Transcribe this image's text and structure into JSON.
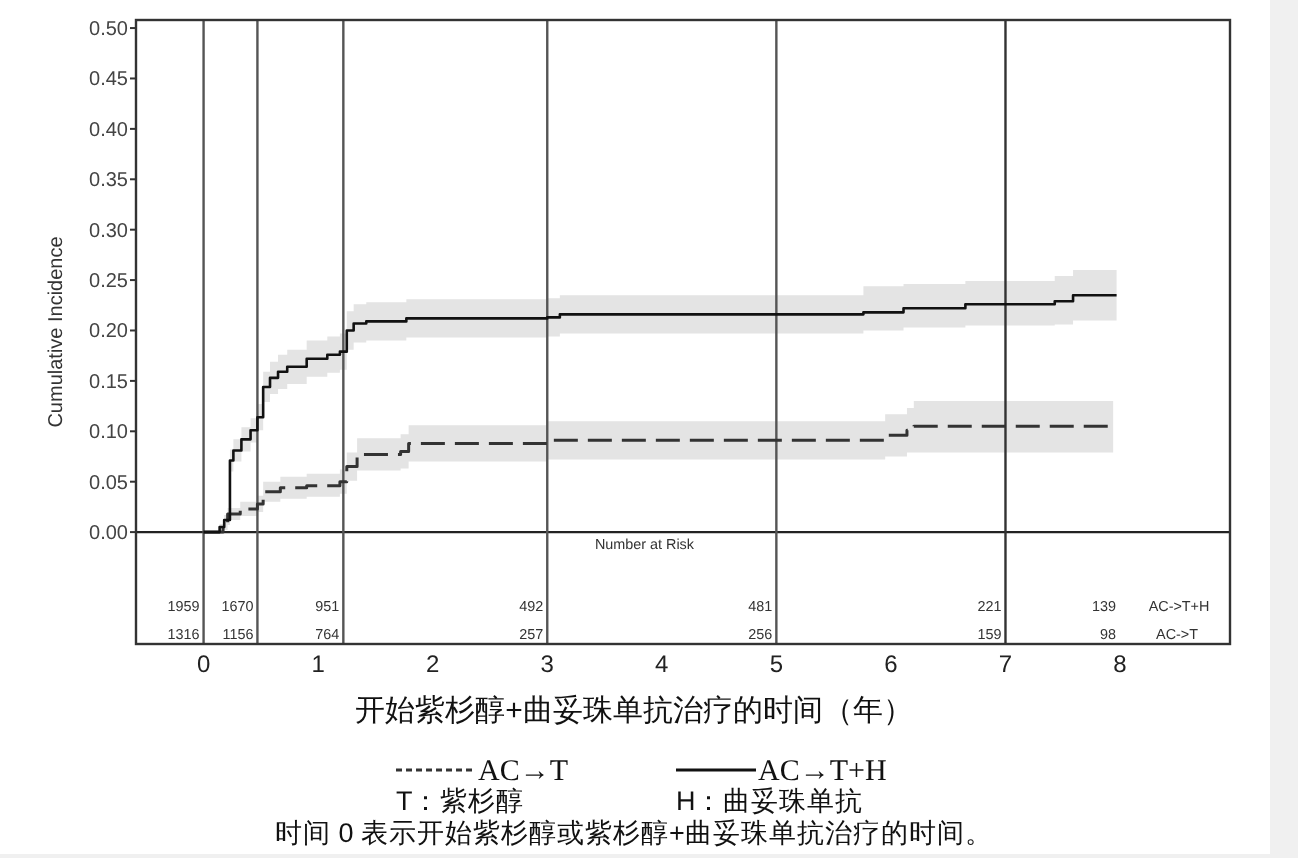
{
  "chart_data": {
    "type": "step",
    "xlabel": "开始紫杉醇+曲妥珠单抗治疗的时间（年）",
    "ylabel": "Cumulative Incidence",
    "xlim": [
      -0.59,
      8.96
    ],
    "ylim": [
      -0.111,
      0.508
    ],
    "xticks": [
      0,
      1,
      2,
      3,
      4,
      5,
      6,
      7,
      8
    ],
    "yticks": [
      {
        "value": 0,
        "label": "0.00"
      },
      {
        "value": 0.05,
        "label": "0.05"
      },
      {
        "value": 0.1,
        "label": "0.10"
      },
      {
        "value": 0.15,
        "label": "0.15"
      },
      {
        "value": 0.2,
        "label": "0.20"
      },
      {
        "value": 0.25,
        "label": "0.25"
      },
      {
        "value": 0.3,
        "label": "0.30"
      },
      {
        "value": 0.35,
        "label": "0.35"
      },
      {
        "value": 0.4,
        "label": "0.40"
      },
      {
        "value": 0.45,
        "label": "0.45"
      },
      {
        "value": 0.5,
        "label": "0.50"
      }
    ],
    "series": [
      {
        "name": "AC→T",
        "color": "#333333",
        "line_style": "dashed",
        "x": [
          0,
          0.17,
          0.21,
          0.32,
          0.47,
          0.52,
          0.67,
          0.9,
          1.19,
          1.25,
          1.34,
          1.72,
          1.79,
          3.0,
          5.95,
          6.14,
          6.2,
          7.94
        ],
        "values": [
          0,
          0.005,
          0.018,
          0.023,
          0.028,
          0.04,
          0.044,
          0.046,
          0.05,
          0.065,
          0.077,
          0.08,
          0.088,
          0.091,
          0.096,
          0.101,
          0.105,
          0.105
        ],
        "lower": [
          0,
          0.002,
          0.012,
          0.016,
          0.02,
          0.03,
          0.033,
          0.035,
          0.038,
          0.051,
          0.061,
          0.063,
          0.07,
          0.072,
          0.075,
          0.079,
          0.079,
          0.079
        ],
        "upper": [
          0,
          0.008,
          0.024,
          0.03,
          0.036,
          0.05,
          0.055,
          0.058,
          0.062,
          0.079,
          0.093,
          0.097,
          0.106,
          0.11,
          0.117,
          0.123,
          0.13,
          0.13
        ]
      },
      {
        "name": "AC→T+H",
        "color": "#111111",
        "line_style": "solid",
        "x": [
          0,
          0.14,
          0.18,
          0.23,
          0.26,
          0.33,
          0.41,
          0.47,
          0.52,
          0.58,
          0.65,
          0.73,
          0.9,
          1.08,
          1.19,
          1.25,
          1.31,
          1.42,
          1.77,
          3.0,
          3.11,
          5.76,
          6.11,
          6.65,
          7.43,
          7.59,
          7.97
        ],
        "values": [
          0,
          0.005,
          0.012,
          0.071,
          0.081,
          0.092,
          0.101,
          0.114,
          0.144,
          0.153,
          0.159,
          0.164,
          0.172,
          0.176,
          0.179,
          0.2,
          0.207,
          0.209,
          0.212,
          0.213,
          0.216,
          0.218,
          0.222,
          0.226,
          0.229,
          0.235,
          0.235
        ],
        "lower": [
          0,
          0.002,
          0.007,
          0.06,
          0.07,
          0.08,
          0.089,
          0.101,
          0.129,
          0.137,
          0.142,
          0.147,
          0.154,
          0.158,
          0.161,
          0.181,
          0.188,
          0.19,
          0.193,
          0.194,
          0.197,
          0.2,
          0.203,
          0.205,
          0.206,
          0.21,
          0.21
        ],
        "upper": [
          0,
          0.008,
          0.017,
          0.082,
          0.092,
          0.104,
          0.113,
          0.127,
          0.159,
          0.169,
          0.176,
          0.181,
          0.19,
          0.194,
          0.197,
          0.219,
          0.226,
          0.228,
          0.231,
          0.232,
          0.235,
          0.244,
          0.246,
          0.249,
          0.254,
          0.26,
          0.26
        ]
      }
    ],
    "ref_lines": [
      {
        "axis": "y",
        "value": 0,
        "color": "#222222"
      },
      {
        "axis": "x",
        "value": 0,
        "color": "#555555"
      },
      {
        "axis": "x",
        "value": 0.47,
        "color": "#555555"
      },
      {
        "axis": "x",
        "value": 1.22,
        "color": "#555555"
      },
      {
        "axis": "x",
        "value": 3,
        "color": "#555555"
      },
      {
        "axis": "x",
        "value": 5,
        "color": "#555555"
      },
      {
        "axis": "x",
        "value": 7,
        "color": "#333333"
      }
    ],
    "legend": "bottom",
    "annotations": [
      "Number at Risk",
      {
        "text": "1959",
        "x": 0,
        "y": -0.073
      },
      {
        "text": "1670",
        "x": 0.47,
        "y": -0.073
      },
      {
        "text": "951",
        "x": 1.22,
        "y": -0.073
      },
      {
        "text": "492",
        "x": 3,
        "y": -0.073
      },
      {
        "text": "481",
        "x": 5,
        "y": -0.073
      },
      {
        "text": "221",
        "x": 7,
        "y": -0.073
      },
      "139",
      "AC->T+H",
      {
        "text": "1316",
        "x": 0,
        "y": -0.101
      },
      {
        "text": "1156",
        "x": 0.47,
        "y": -0.101
      },
      {
        "text": "764",
        "x": 1.22,
        "y": -0.101
      },
      {
        "text": "257",
        "x": 3,
        "y": -0.101
      },
      {
        "text": "256",
        "x": 5,
        "y": -0.101
      },
      {
        "text": "159",
        "x": 7,
        "y": -0.101
      },
      "98",
      "AC->T",
      "T：紫杉醇",
      "H：曲妥珠单抗",
      "时间 0 表示开始紫杉醇或紫杉醇+曲妥珠单抗治疗的时间。"
    ]
  }
}
